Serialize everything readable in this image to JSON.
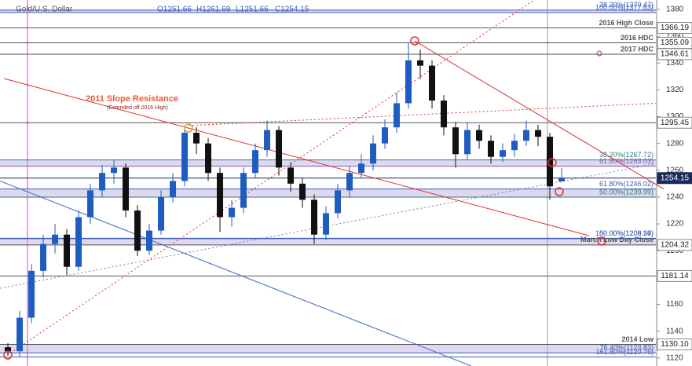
{
  "chart_data": {
    "type": "candlestick",
    "title": "Gold/U.S. Dollar",
    "ohlc_header": [
      "O1251.66",
      "H1261.69",
      "L1251.66",
      "C1254.15"
    ],
    "annotation": "2011 Slope Resistance",
    "annotation_sub": "(Extended off 2016 High)",
    "xlim": [
      -0.67,
      55
    ],
    "ylim": [
      1114,
      1387
    ],
    "yticks": [
      1120,
      1140,
      1160,
      1180,
      1200,
      1220,
      1240,
      1260,
      1280,
      1300,
      1320,
      1340,
      1360,
      1380
    ],
    "up_color": "#1f5cc0",
    "down_color": "#111111",
    "open": [
      1128,
      1125,
      1150,
      1185,
      1205,
      1212,
      1188,
      1225,
      1245,
      1258,
      1262,
      1230,
      1200,
      1215,
      1240,
      1252,
      1288,
      1280,
      1258,
      1225,
      1232,
      1258,
      1275,
      1290,
      1262,
      1250,
      1238,
      1212,
      1228,
      1245,
      1258,
      1265,
      1280,
      1292,
      1310,
      1342,
      1338,
      1312,
      1292,
      1272,
      1290,
      1282,
      1270,
      1275,
      1282,
      1290,
      1285,
      1251.66
    ],
    "high": [
      1131,
      1155,
      1190,
      1212,
      1220,
      1216,
      1230,
      1250,
      1264,
      1268,
      1265,
      1234,
      1220,
      1245,
      1258,
      1293,
      1292,
      1284,
      1262,
      1238,
      1262,
      1280,
      1297,
      1293,
      1266,
      1254,
      1242,
      1233,
      1250,
      1263,
      1272,
      1286,
      1298,
      1318,
      1355,
      1350,
      1342,
      1316,
      1296,
      1296,
      1294,
      1286,
      1280,
      1287,
      1297,
      1294,
      1288,
      1261.69
    ],
    "low": [
      1122,
      1121,
      1146,
      1180,
      1198,
      1182,
      1185,
      1220,
      1240,
      1250,
      1225,
      1196,
      1197,
      1212,
      1236,
      1248,
      1272,
      1252,
      1214,
      1218,
      1228,
      1254,
      1270,
      1256,
      1244,
      1232,
      1205,
      1208,
      1224,
      1240,
      1254,
      1260,
      1276,
      1288,
      1306,
      1328,
      1306,
      1286,
      1262,
      1268,
      1276,
      1265,
      1266,
      1270,
      1278,
      1278,
      1238,
      1251.66
    ],
    "close": [
      1125,
      1150,
      1185,
      1205,
      1212,
      1188,
      1225,
      1245,
      1258,
      1262,
      1230,
      1200,
      1215,
      1240,
      1252,
      1288,
      1280,
      1258,
      1225,
      1232,
      1258,
      1275,
      1290,
      1262,
      1250,
      1238,
      1212,
      1228,
      1245,
      1258,
      1265,
      1280,
      1292,
      1310,
      1342,
      1338,
      1312,
      1292,
      1272,
      1290,
      1282,
      1270,
      1275,
      1282,
      1290,
      1285,
      1248,
      1254.15
    ],
    "levels": [
      {
        "value": 1379.47,
        "note": "38.20%(1379.47)",
        "color": "#3a5ab8",
        "band_to_next": true
      },
      {
        "value": 1377.63,
        "note": "100.00%(1377.63)",
        "color": "#3a5ab8"
      },
      {
        "value": 1366.19,
        "label": "1366.19",
        "note": "2016 High Close",
        "color": "#555555"
      },
      {
        "value": 1355.09,
        "label": "1355.09",
        "note": "2016 HDC",
        "color": "#555555"
      },
      {
        "value": 1346.61,
        "label": "1346.61",
        "note": "2017 HDC",
        "color": "#555555"
      },
      {
        "value": 1295.45,
        "label": "1295.45",
        "color": "#555555"
      },
      {
        "value": 1267.72,
        "note": "38.20%(1267.72)",
        "color": "#2e7d6e",
        "band_to_next": true
      },
      {
        "value": 1263.03,
        "note": "61.80%(1263.03)",
        "color": "#7a5fb0"
      },
      {
        "value": 1254.15,
        "label": "1254.15",
        "color": "#1a2a5a",
        "current": true
      },
      {
        "value": 1246.02,
        "note": "61.80%(1246.02)",
        "color": "#3a5ab8",
        "band_to_next": true
      },
      {
        "value": 1239.99,
        "note": "50.00%(1239.99)",
        "color": "#2e7d6e"
      },
      {
        "value": 1209.24,
        "note": "50.00%(1209.24)",
        "color": "#3a5ab8"
      },
      {
        "value": 1208.99,
        "note": "100.00%(1208.99)",
        "color": "#3a5ab8",
        "band_to_next": true
      },
      {
        "value": 1204.32,
        "label": "1204.32",
        "note": "March Low Day Close",
        "color": "#555555"
      },
      {
        "value": 1181.14,
        "label": "1181.14",
        "color": "#555555"
      },
      {
        "value": 1130.1,
        "label": "1130.10",
        "note": "2014 Low",
        "color": "#555555",
        "band_to_next": true
      },
      {
        "value": 1123.83,
        "note": "76.40%(1123.83)",
        "color": "#3a5ab8"
      },
      {
        "value": 1120.76,
        "note": "161.80%(1120.76)",
        "color": "#3a5ab8"
      }
    ],
    "trendlines": [
      {
        "start": [
          -0.33,
          1328.4
        ],
        "end": [
          49.33,
          1211.2
        ],
        "color": "#e03030",
        "dash": false
      },
      {
        "start": [
          34.53,
          1356.5
        ],
        "end": [
          55.67,
          1246
        ],
        "color": "#e03030",
        "dash": false
      },
      {
        "start": [
          -0.33,
          1120.4
        ],
        "end": [
          44.67,
          1387
        ],
        "color": "#e03030",
        "dash": true
      },
      {
        "start": [
          15.33,
          1293.3
        ],
        "end": [
          55,
          1310
        ],
        "color": "#e03030",
        "dash": true
      },
      {
        "start": [
          -0.67,
          1252
        ],
        "end": [
          39.33,
          1114
        ],
        "color": "#3a6ac8",
        "dash": false
      },
      {
        "start": [
          -0.67,
          1172
        ],
        "end": [
          55,
          1265
        ],
        "color": "#6a7ac8",
        "dash": true
      }
    ]
  }
}
